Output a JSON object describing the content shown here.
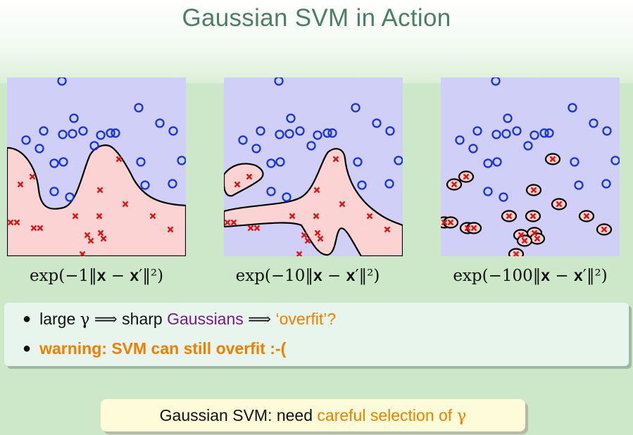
{
  "slide": {
    "title": "Gaussian SVM in Action"
  },
  "panels": [
    {
      "caption_prefix": "exp(−1‖",
      "caption_x": "x",
      "caption_minus": " − ",
      "caption_xprime": "x",
      "caption_suffix": "′‖²)"
    },
    {
      "caption_prefix": "exp(−10‖",
      "caption_x": "x",
      "caption_minus": " − ",
      "caption_xprime": "x",
      "caption_suffix": "′‖²)"
    },
    {
      "caption_prefix": "exp(−100‖",
      "caption_x": "x",
      "caption_minus": " − ",
      "caption_xprime": "x",
      "caption_suffix": "′‖²)"
    }
  ],
  "bullets": {
    "b1_large": "large",
    "b1_gamma": "γ",
    "b1_implies1": "⟹",
    "b1_sharp": "sharp",
    "b1_gaussians": "Gaussians",
    "b1_implies2": "⟹",
    "b1_overfit": "‘overfit’?",
    "b2_warning": "warning: SVM can still overfit :-("
  },
  "note": {
    "prefix": "Gaussian SVM: need ",
    "highlight": "careful selection of ",
    "gamma": "γ"
  },
  "colors": {
    "title": "#4b7f63",
    "positive_region": "#cfcff7",
    "negative_region": "#fbd3d3",
    "circle_marker": "#1432e6",
    "cross_marker": "#e60f0f",
    "highlight_purple": "#7a1a8a",
    "highlight_orange": "#f07e00"
  }
}
